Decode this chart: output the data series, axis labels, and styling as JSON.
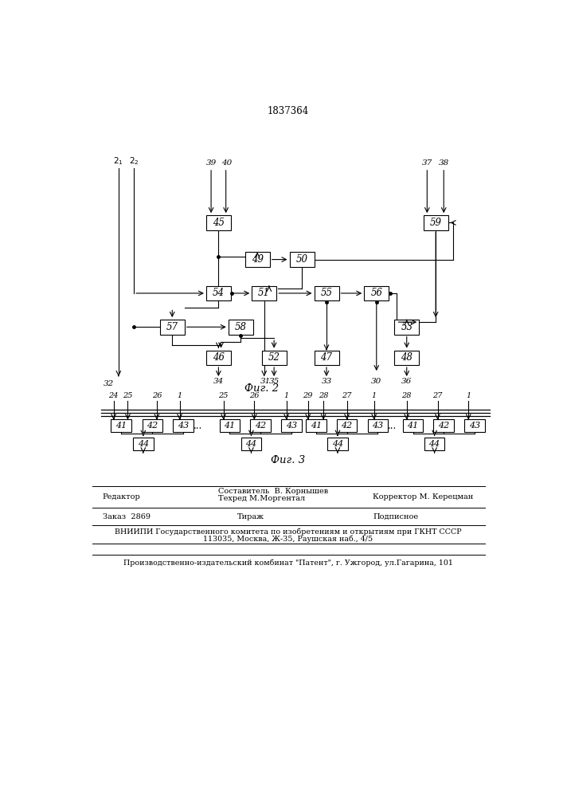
{
  "title": "1837364",
  "fig2_label": "Фиг. 2",
  "fig3_label": "Фиг. 3",
  "background_color": "#ffffff"
}
